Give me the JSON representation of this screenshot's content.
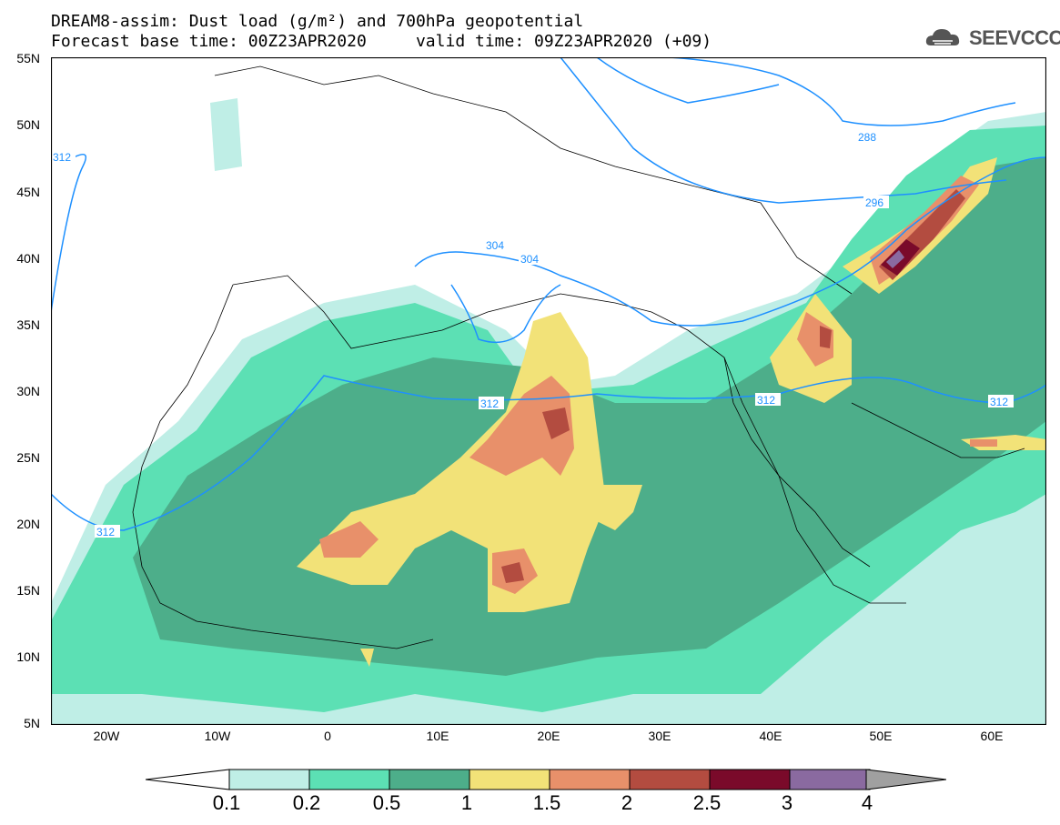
{
  "title": {
    "line1": "DREAM8-assim: Dust load (g/m²) and 700hPa geopotential",
    "line2": "Forecast base time: 00Z23APR2020     valid time: 09Z23APR2020 (+09)"
  },
  "logo": {
    "text": "SEEVCCC",
    "icon": "cloud-icon"
  },
  "map": {
    "lat_labels": [
      "55N",
      "50N",
      "45N",
      "40N",
      "35N",
      "30N",
      "25N",
      "20N",
      "15N",
      "10N",
      "5N"
    ],
    "lon_labels": [
      "20W",
      "10W",
      "0",
      "10E",
      "20E",
      "30E",
      "40E",
      "50E",
      "60E"
    ],
    "contour_labels": [
      "312",
      "288",
      "296",
      "304",
      "304",
      "312",
      "312",
      "312",
      "312"
    ]
  },
  "legend": {
    "ticks": [
      "0.1",
      "0.2",
      "0.5",
      "1",
      "1.5",
      "2",
      "2.5",
      "3",
      "4"
    ],
    "colors": [
      "#bfeee6",
      "#5ce0b4",
      "#4dae8a",
      "#f2e278",
      "#e8906a",
      "#b34c40",
      "#7a0a2a",
      "#8a6aa0",
      "#a0a0a0"
    ]
  }
}
